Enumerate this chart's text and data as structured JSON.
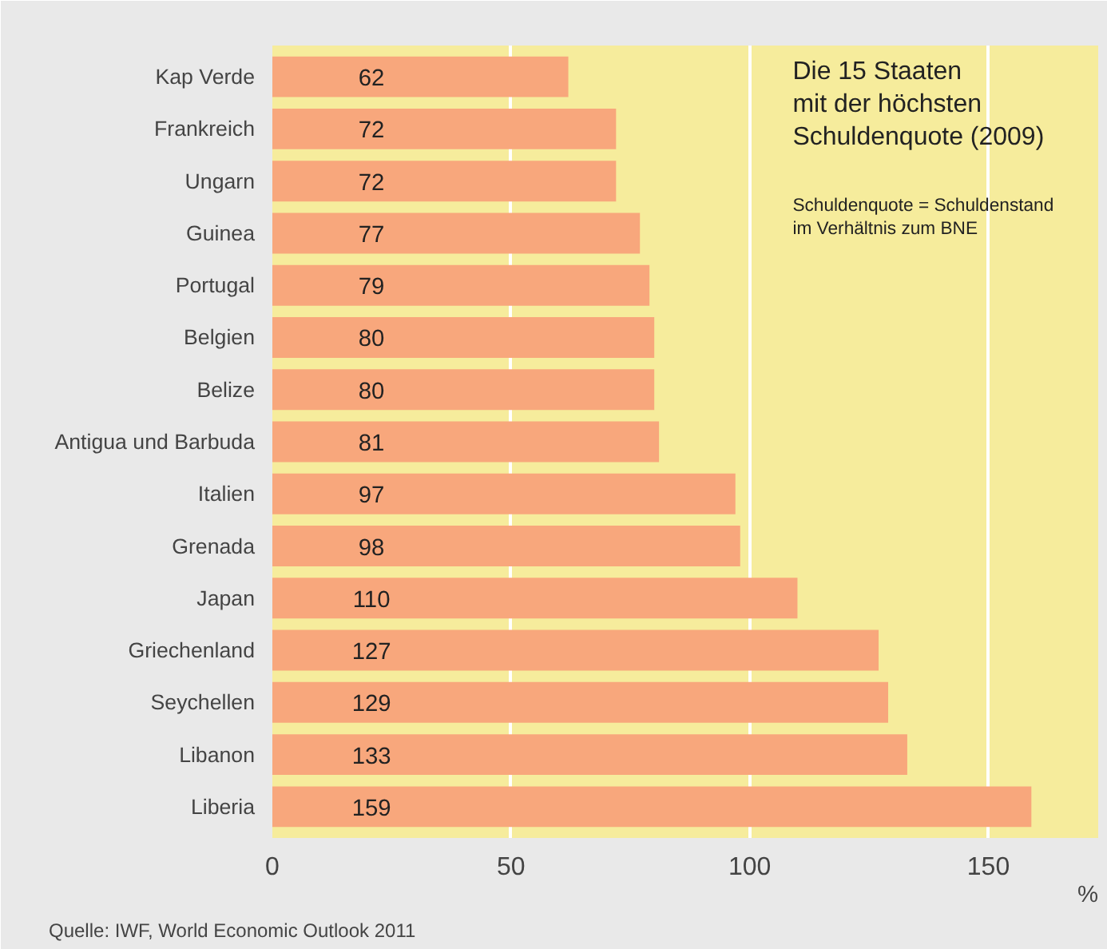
{
  "chart_data": {
    "type": "bar",
    "orientation": "horizontal",
    "title": "Die 15 Staaten\nmit der höchsten\nSchuldenquote (2009)",
    "subtitle": "Schuldenquote = Schuldenstand\n                      im Verhältnis zum BNE",
    "xlabel": "%",
    "categories": [
      "Kap Verde",
      "Frankreich",
      "Ungarn",
      "Guinea",
      "Portugal",
      "Belgien",
      "Belize",
      "Antigua und Barbuda",
      "Italien",
      "Grenada",
      "Japan",
      "Griechenland",
      "Seychellen",
      "Libanon",
      "Liberia"
    ],
    "values": [
      62,
      72,
      72,
      77,
      79,
      80,
      80,
      81,
      97,
      98,
      110,
      127,
      129,
      133,
      159
    ],
    "color": "#f8a77c",
    "xlim": [
      0,
      173
    ],
    "xticks": [
      0,
      50,
      100,
      150
    ],
    "grid": "x",
    "data_labels": true,
    "annotations": [
      "Quelle: IWF, World Economic Outlook 2011"
    ]
  }
}
